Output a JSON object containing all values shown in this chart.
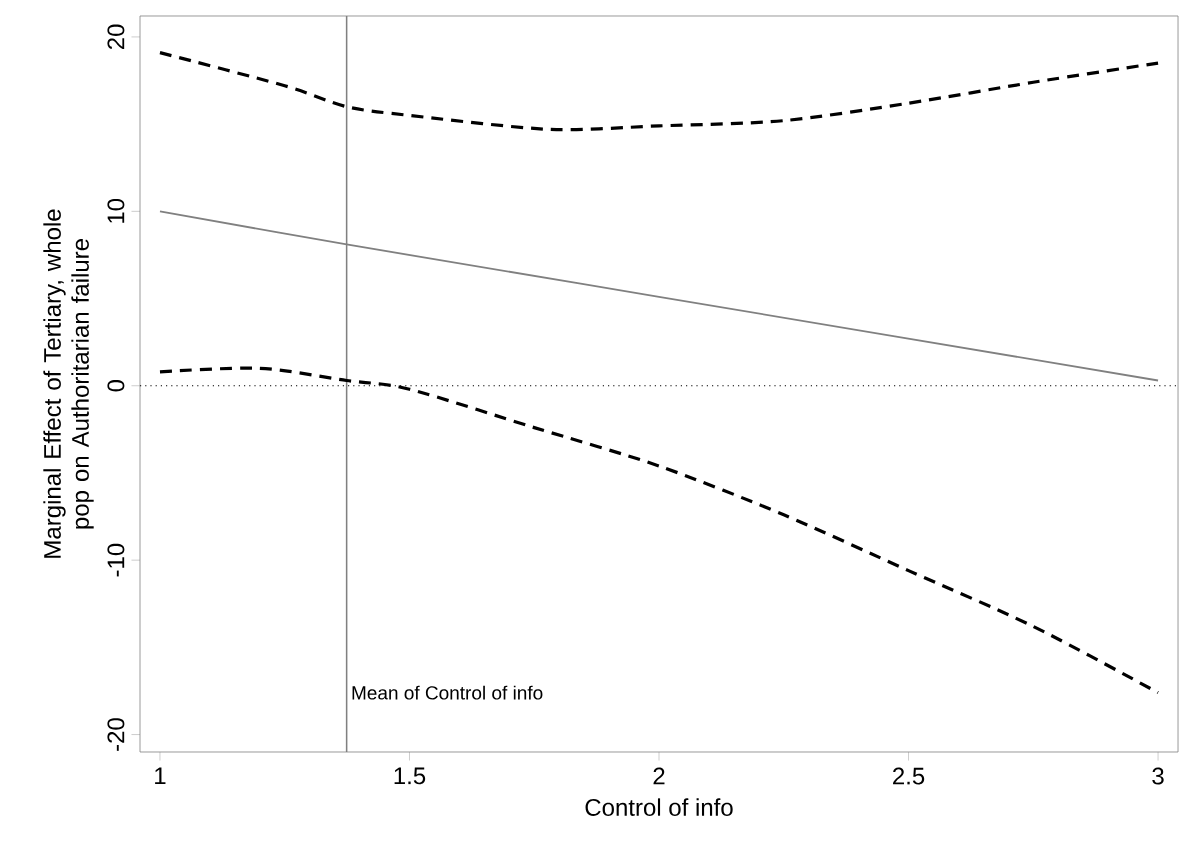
{
  "chart_data": {
    "type": "line",
    "xlabel": "Control of info",
    "ylabel": "Marginal Effect of Tertiary, whole pop on Authoritarian failure",
    "xlim": [
      0.96,
      3.04
    ],
    "ylim": [
      -21,
      21.2
    ],
    "xticks": [
      1,
      1.5,
      2,
      2.5,
      3
    ],
    "yticks": [
      -20,
      -10,
      0,
      10,
      20
    ],
    "marker": "none",
    "series": [
      {
        "color": "#808080",
        "line_style": "solid",
        "x": [
          1,
          1.374,
          2,
          3
        ],
        "values": [
          10,
          8.1,
          5.1,
          0.3
        ]
      },
      {
        "color": "#000000",
        "line_style": "dashed",
        "x": [
          1,
          1.25,
          1.374,
          1.5,
          1.78,
          2,
          2.25,
          2.5,
          2.75,
          3
        ],
        "values": [
          19.1,
          17.2,
          16.0,
          15.5,
          14.7,
          14.9,
          15.2,
          16.2,
          17.4,
          18.5
        ]
      },
      {
        "color": "#000000",
        "line_style": "dashed",
        "x": [
          1,
          1.2,
          1.374,
          1.5,
          1.75,
          2,
          2.25,
          2.5,
          2.75,
          3
        ],
        "values": [
          0.8,
          1.0,
          0.3,
          -0.2,
          -2.4,
          -4.6,
          -7.4,
          -10.6,
          -13.8,
          -17.6
        ]
      }
    ],
    "ref_lines": [
      {
        "axis": "y",
        "value": 0,
        "color": "#000000",
        "line_style": "dotted"
      },
      {
        "axis": "x",
        "value": 1.374,
        "color": "#808080",
        "line_style": "solid",
        "label": "Mean of Control of info"
      }
    ]
  }
}
